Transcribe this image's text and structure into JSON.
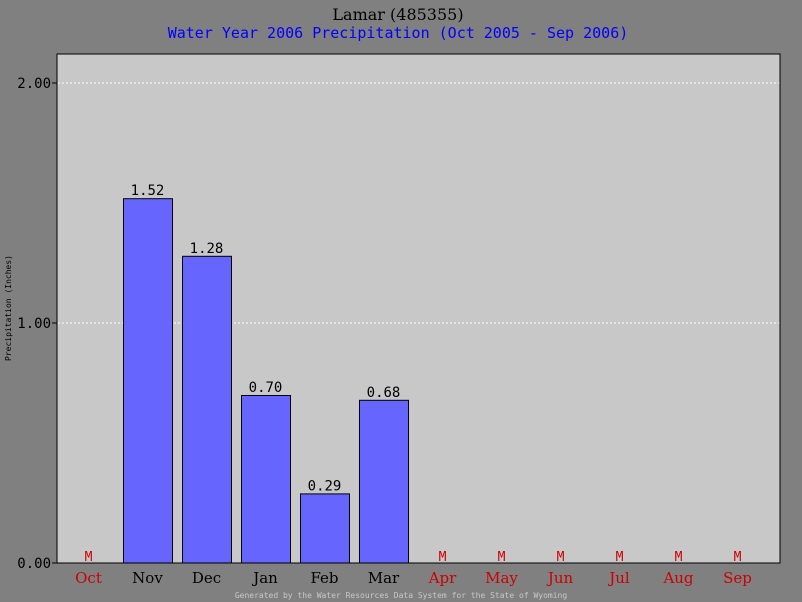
{
  "chart_data": {
    "type": "bar",
    "title": "Lamar (485355)",
    "subtitle": "Water Year 2006 Precipitation (Oct 2005 - Sep 2006)",
    "ylabel": "Precipitation (Inches)",
    "xlabel": "",
    "ylim": [
      0,
      2.1
    ],
    "yticks": [
      {
        "value": 0,
        "label": "0.00"
      },
      {
        "value": 1,
        "label": "1.00"
      },
      {
        "value": 2,
        "label": "2.00"
      }
    ],
    "grid": true,
    "categories": [
      "Oct",
      "Nov",
      "Dec",
      "Jan",
      "Feb",
      "Mar",
      "Apr",
      "May",
      "Jun",
      "Jul",
      "Aug",
      "Sep"
    ],
    "values": [
      null,
      1.52,
      1.28,
      0.7,
      0.29,
      0.68,
      null,
      null,
      null,
      null,
      null,
      null
    ],
    "value_labels": [
      "M",
      "1.52",
      "1.28",
      "0.70",
      "0.29",
      "0.68",
      "M",
      "M",
      "M",
      "M",
      "M",
      "M"
    ],
    "missing_marker": "M"
  },
  "footer": "Generated by the Water Resources Data System for the State of Wyoming",
  "colors": {
    "background": "#808080",
    "plot_area": "#c8c8c8",
    "bar_fill": "#6666ff",
    "bar_stroke": "#000000",
    "subtitle": "#0000ff",
    "missing": "#cc0000",
    "tick_normal": "#000000",
    "gridline": "#ffffff",
    "footer": "#c8c8c8"
  }
}
